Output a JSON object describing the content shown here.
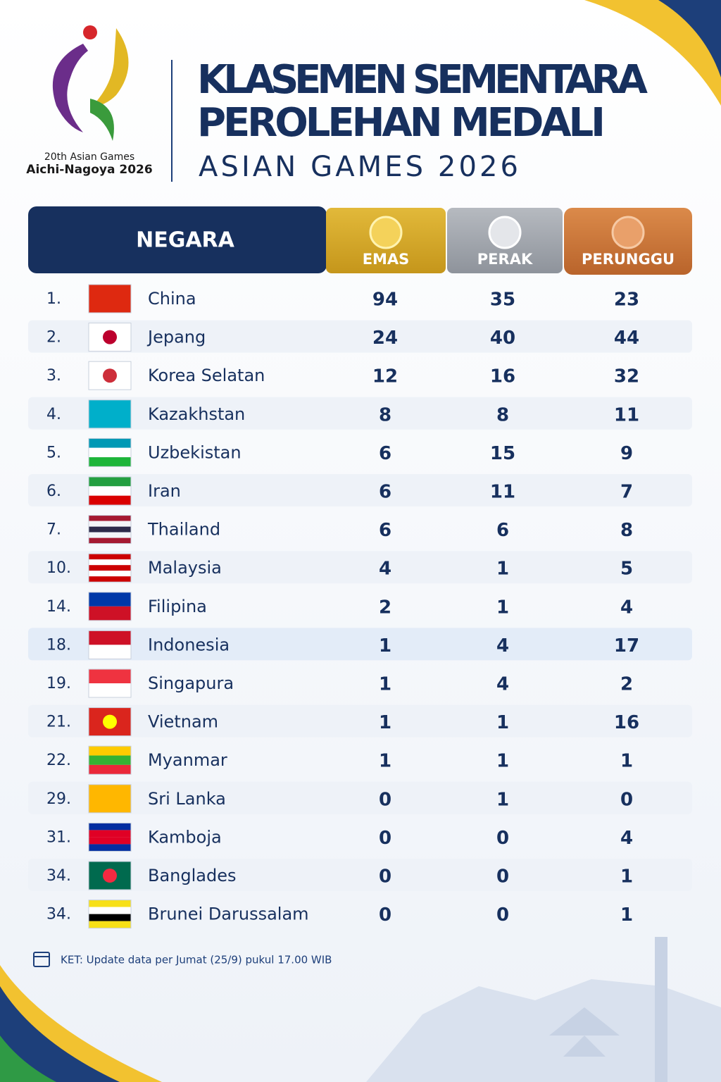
{
  "header": {
    "logo_line1": "20th Asian Games",
    "logo_line2": "Aichi-Nagoya 2026",
    "title_line1": "KLASEMEN SEMENTARA",
    "title_line2": "PEROLEHAN MEDALI",
    "subtitle": "ASIAN GAMES 2026"
  },
  "table": {
    "columns": [
      "NEGARA",
      "EMAS",
      "PERAK",
      "PERUNGGU"
    ],
    "rows": [
      [
        "1.",
        "China",
        94,
        35,
        23
      ],
      [
        "2.",
        "Jepang",
        24,
        40,
        44
      ],
      [
        "3.",
        "Korea Selatan",
        12,
        16,
        32
      ],
      [
        "4.",
        "Kazakhstan",
        8,
        8,
        11
      ],
      [
        "5.",
        "Uzbekistan",
        6,
        15,
        9
      ],
      [
        "6.",
        "Iran",
        6,
        11,
        7
      ],
      [
        "7.",
        "Thailand",
        6,
        6,
        8
      ],
      [
        "10.",
        "Malaysia",
        4,
        1,
        5
      ],
      [
        "14.",
        "Filipina",
        2,
        1,
        4
      ],
      [
        "18.",
        "Indonesia",
        1,
        4,
        17
      ],
      [
        "19.",
        "Singapura",
        1,
        4,
        2
      ],
      [
        "21.",
        "Vietnam",
        1,
        1,
        16
      ],
      [
        "22.",
        "Myanmar",
        1,
        1,
        1
      ],
      [
        "29.",
        "Sri Lanka",
        0,
        1,
        0
      ],
      [
        "31.",
        "Kamboja",
        0,
        0,
        4
      ],
      [
        "34.",
        "Banglades",
        0,
        0,
        1
      ],
      [
        "34.",
        "Brunei Darussalam",
        0,
        0,
        1
      ]
    ]
  },
  "footer": {
    "note": "KET: Update data per Jumat (25/9) pukul 17.00 WIB"
  }
}
